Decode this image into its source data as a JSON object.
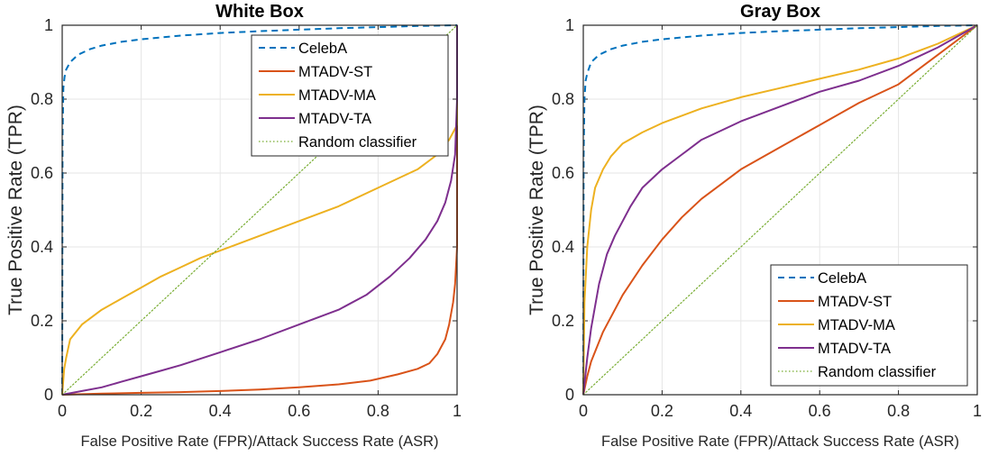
{
  "chart_data": [
    {
      "type": "line",
      "title": "White Box",
      "xlabel": "False Positive Rate (FPR)/Attack Success Rate (ASR)",
      "ylabel": "True Positive Rate (TPR)",
      "xlim": [
        0,
        1
      ],
      "ylim": [
        0,
        1
      ],
      "xticks": [
        "0",
        "0.2",
        "0.4",
        "0.6",
        "0.8",
        "1"
      ],
      "yticks": [
        "0",
        "0.2",
        "0.4",
        "0.6",
        "0.8",
        "1"
      ],
      "grid": true,
      "legend_position": "top-right",
      "series": [
        {
          "name": "CelebA",
          "color": "#0072bd",
          "style": "dashed",
          "x": [
            0,
            0.001,
            0.003,
            0.006,
            0.01,
            0.02,
            0.04,
            0.07,
            0.1,
            0.15,
            0.2,
            0.3,
            0.4,
            0.5,
            0.6,
            0.7,
            0.8,
            0.9,
            1
          ],
          "y": [
            0,
            0.7,
            0.83,
            0.86,
            0.88,
            0.9,
            0.92,
            0.935,
            0.945,
            0.955,
            0.962,
            0.972,
            0.979,
            0.984,
            0.988,
            0.992,
            0.995,
            0.998,
            1
          ]
        },
        {
          "name": "MTADV-ST",
          "color": "#d95319",
          "style": "solid",
          "x": [
            0,
            0.1,
            0.2,
            0.3,
            0.4,
            0.5,
            0.6,
            0.7,
            0.78,
            0.85,
            0.9,
            0.93,
            0.95,
            0.97,
            0.98,
            0.99,
            0.995,
            1,
            1
          ],
          "y": [
            0,
            0.003,
            0.005,
            0.007,
            0.01,
            0.014,
            0.02,
            0.028,
            0.038,
            0.055,
            0.07,
            0.085,
            0.11,
            0.15,
            0.19,
            0.25,
            0.3,
            0.4,
            1
          ]
        },
        {
          "name": "MTADV-MA",
          "color": "#edb120",
          "style": "solid",
          "x": [
            0,
            0.005,
            0.01,
            0.02,
            0.05,
            0.1,
            0.15,
            0.2,
            0.25,
            0.3,
            0.35,
            0.4,
            0.5,
            0.6,
            0.7,
            0.8,
            0.9,
            0.95,
            0.98,
            1,
            1
          ],
          "y": [
            0,
            0.07,
            0.1,
            0.15,
            0.19,
            0.23,
            0.26,
            0.29,
            0.32,
            0.345,
            0.37,
            0.39,
            0.43,
            0.47,
            0.51,
            0.56,
            0.61,
            0.65,
            0.69,
            0.73,
            1
          ]
        },
        {
          "name": "MTADV-TA",
          "color": "#7e2f8e",
          "style": "solid",
          "x": [
            0,
            0.05,
            0.1,
            0.15,
            0.2,
            0.25,
            0.3,
            0.4,
            0.5,
            0.6,
            0.7,
            0.77,
            0.83,
            0.88,
            0.92,
            0.95,
            0.97,
            0.985,
            0.995,
            1,
            1
          ],
          "y": [
            0,
            0.01,
            0.02,
            0.035,
            0.05,
            0.065,
            0.08,
            0.115,
            0.15,
            0.19,
            0.23,
            0.27,
            0.32,
            0.37,
            0.42,
            0.47,
            0.52,
            0.58,
            0.65,
            0.8,
            1
          ]
        },
        {
          "name": "Random classifier",
          "color": "#77ac30",
          "style": "dotted",
          "x": [
            0,
            1
          ],
          "y": [
            0,
            1
          ]
        }
      ]
    },
    {
      "type": "line",
      "title": "Gray Box",
      "xlabel": "False Positive Rate (FPR)/Attack Success Rate (ASR)",
      "ylabel": "True Positive Rate (TPR)",
      "xlim": [
        0,
        1
      ],
      "ylim": [
        0,
        1
      ],
      "xticks": [
        "0",
        "0.2",
        "0.4",
        "0.6",
        "0.8",
        "1"
      ],
      "yticks": [
        "0",
        "0.2",
        "0.4",
        "0.6",
        "0.8",
        "1"
      ],
      "grid": true,
      "legend_position": "bottom-right",
      "series": [
        {
          "name": "CelebA",
          "color": "#0072bd",
          "style": "dashed",
          "x": [
            0,
            0.001,
            0.003,
            0.006,
            0.01,
            0.02,
            0.04,
            0.07,
            0.1,
            0.15,
            0.2,
            0.3,
            0.4,
            0.5,
            0.6,
            0.7,
            0.8,
            0.9,
            1
          ],
          "y": [
            0,
            0.65,
            0.8,
            0.85,
            0.87,
            0.9,
            0.92,
            0.935,
            0.945,
            0.955,
            0.962,
            0.972,
            0.979,
            0.984,
            0.988,
            0.992,
            0.995,
            0.998,
            1
          ]
        },
        {
          "name": "MTADV-ST",
          "color": "#d95319",
          "style": "solid",
          "x": [
            0,
            0.01,
            0.02,
            0.05,
            0.1,
            0.15,
            0.2,
            0.25,
            0.3,
            0.35,
            0.4,
            0.5,
            0.6,
            0.7,
            0.8,
            0.9,
            1
          ],
          "y": [
            0,
            0.05,
            0.09,
            0.17,
            0.27,
            0.35,
            0.42,
            0.48,
            0.53,
            0.57,
            0.61,
            0.67,
            0.73,
            0.79,
            0.84,
            0.92,
            1
          ]
        },
        {
          "name": "MTADV-MA",
          "color": "#edb120",
          "style": "solid",
          "x": [
            0,
            0.003,
            0.01,
            0.02,
            0.03,
            0.05,
            0.07,
            0.1,
            0.15,
            0.2,
            0.3,
            0.4,
            0.5,
            0.6,
            0.7,
            0.8,
            0.9,
            1
          ],
          "y": [
            0,
            0.25,
            0.4,
            0.5,
            0.56,
            0.61,
            0.645,
            0.68,
            0.71,
            0.735,
            0.775,
            0.805,
            0.83,
            0.855,
            0.88,
            0.91,
            0.95,
            1
          ]
        },
        {
          "name": "MTADV-TA",
          "color": "#7e2f8e",
          "style": "solid",
          "x": [
            0,
            0.01,
            0.02,
            0.04,
            0.06,
            0.08,
            0.1,
            0.12,
            0.15,
            0.2,
            0.25,
            0.3,
            0.35,
            0.4,
            0.5,
            0.6,
            0.7,
            0.8,
            0.9,
            1
          ],
          "y": [
            0,
            0.1,
            0.18,
            0.3,
            0.38,
            0.43,
            0.47,
            0.51,
            0.56,
            0.61,
            0.65,
            0.69,
            0.715,
            0.74,
            0.78,
            0.82,
            0.85,
            0.89,
            0.94,
            1
          ]
        },
        {
          "name": "Random classifier",
          "color": "#77ac30",
          "style": "dotted",
          "x": [
            0,
            1
          ],
          "y": [
            0,
            1
          ]
        }
      ]
    }
  ]
}
